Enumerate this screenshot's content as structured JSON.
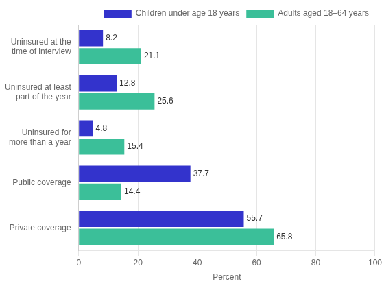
{
  "chart_data": {
    "type": "bar",
    "orientation": "horizontal",
    "xlabel": "Percent",
    "categories": [
      "Uninsured at the\ntime of interview",
      "Uninsured at least\npart of the year",
      "Uninsured for\nmore than a year",
      "Public coverage",
      "Private coverage"
    ],
    "series": [
      {
        "name": "Children under age 18 years",
        "color": "#3333cc",
        "values": [
          8.2,
          12.8,
          4.8,
          37.7,
          55.7
        ]
      },
      {
        "name": "Adults aged 18–64 years",
        "color": "#3bbf99",
        "values": [
          21.1,
          25.6,
          15.4,
          14.4,
          65.8
        ]
      }
    ],
    "xlim": [
      0,
      100
    ],
    "xticks": [
      0,
      20,
      40,
      60,
      80,
      100
    ],
    "grid": true,
    "legend": "upper right",
    "data_labels": true
  }
}
